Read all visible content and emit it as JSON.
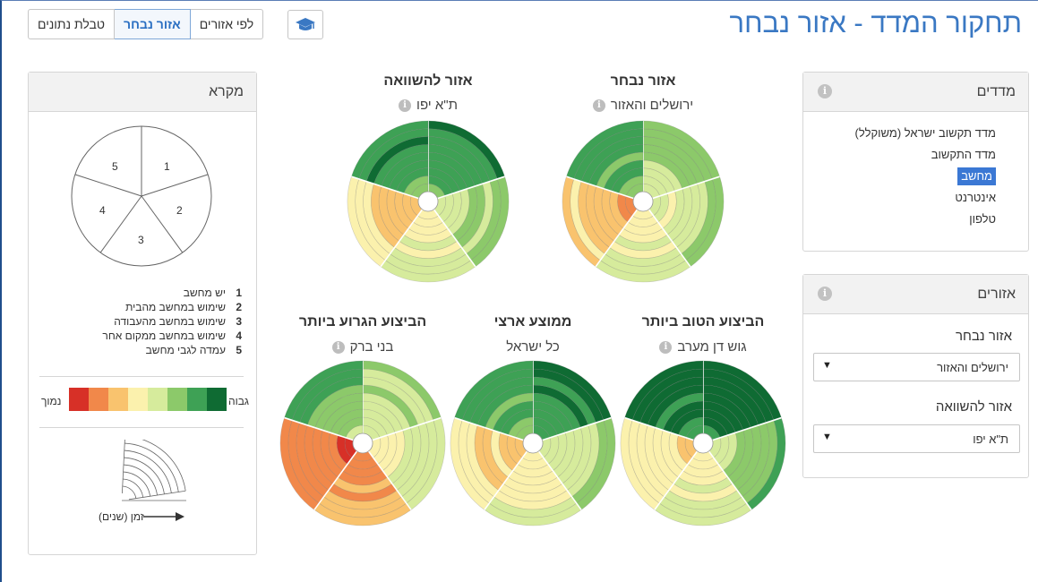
{
  "header": {
    "title": "תחקור המדד - אזור נבחר",
    "tabs": [
      {
        "label": "טבלת נתונים",
        "active": false
      },
      {
        "label": "אזור נבחר",
        "active": true
      },
      {
        "label": "לפי אזורים",
        "active": false
      }
    ],
    "cap_icon": "graduation-cap-icon"
  },
  "metrics_panel": {
    "title": "מדדים",
    "items": [
      {
        "label": "מדד תקשוב ישראל (משוקלל)",
        "selected": false
      },
      {
        "label": "מדד התקשוב",
        "selected": false
      },
      {
        "label": "מחשב",
        "selected": true
      },
      {
        "label": "אינטרנט",
        "selected": false
      },
      {
        "label": "טלפון",
        "selected": false
      }
    ]
  },
  "regions_panel": {
    "title": "אזורים",
    "selected_label": "אזור נבחר",
    "selected_value": "ירושלים והאזור",
    "compare_label": "אזור להשוואה",
    "compare_value": "ת\"א יפו"
  },
  "charts": {
    "selected": {
      "title": "אזור נבחר",
      "subtitle": "ירושלים והאזור"
    },
    "compare": {
      "title": "אזור להשוואה",
      "subtitle": "ת\"א יפו"
    },
    "best": {
      "title": "הביצוע הטוב ביותר",
      "subtitle": "גוש דן מערב"
    },
    "national": {
      "title": "ממוצע ארצי",
      "subtitle": "כל ישראל"
    },
    "worst": {
      "title": "הביצוע הגרוע ביותר",
      "subtitle": "בני ברק"
    }
  },
  "legend": {
    "title": "מקרא",
    "pie_labels": [
      "1",
      "2",
      "3",
      "4",
      "5"
    ],
    "items": [
      {
        "num": "1",
        "label": "יש מחשב"
      },
      {
        "num": "2",
        "label": "שימוש במחשב מהבית"
      },
      {
        "num": "3",
        "label": "שימוש במחשב מהעבודה"
      },
      {
        "num": "4",
        "label": "שימוש במחשב ממקום אחר"
      },
      {
        "num": "5",
        "label": "עמדה לגבי מחשב"
      }
    ],
    "high_label": "גבוה",
    "low_label": "נמוך",
    "scale_colors": [
      "#0f6b33",
      "#3ea155",
      "#8cc96a",
      "#d6eb9c",
      "#fbf1ad",
      "#f9c36e",
      "#f1884a",
      "#d73027"
    ],
    "time_label": "זמן (שנים)"
  }
}
